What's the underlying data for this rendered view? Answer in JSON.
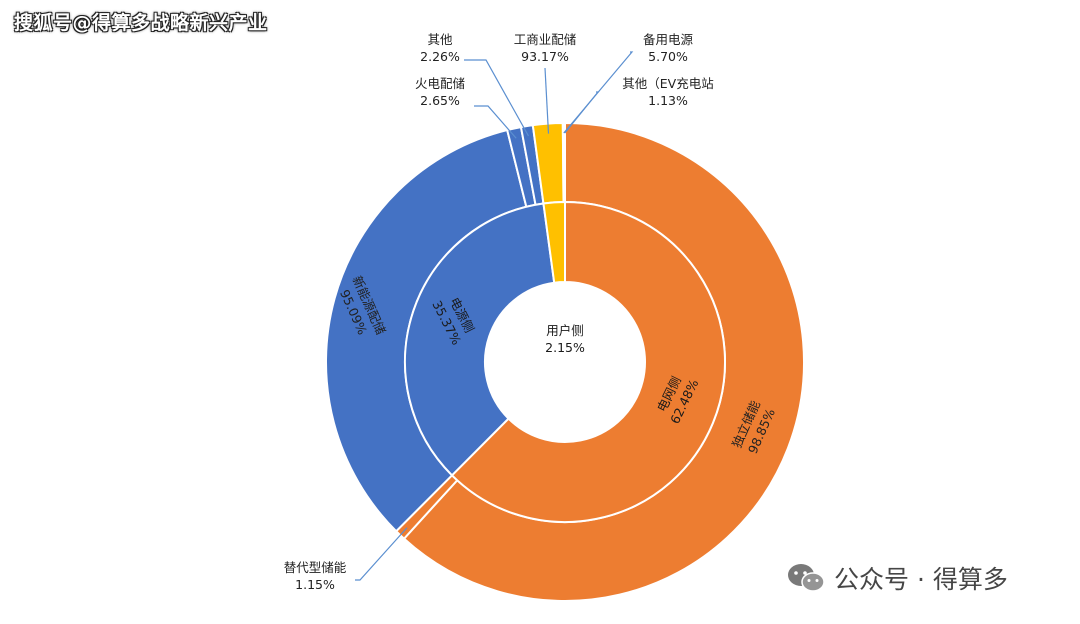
{
  "watermarks": {
    "top": "搜狐号@得算多战略新兴产业",
    "bottom": "公众号 · 得算多",
    "bottom_icon": "wechat-icon"
  },
  "colors": {
    "orange": "#ED7D31",
    "blue": "#4472C4",
    "yellow": "#FFC000",
    "separator": "#ffffff",
    "leader": "#5b8fd0"
  },
  "chart_data": {
    "type": "pie",
    "subtype": "sunburst-donut",
    "inner_ring": [
      {
        "name": "电网侧",
        "value_label": "62.48%",
        "value": 62.48,
        "color": "#ED7D31"
      },
      {
        "name": "电源侧",
        "value_label": "35.37%",
        "value": 35.37,
        "color": "#4472C4"
      },
      {
        "name": "用户侧",
        "value_label": "2.15%",
        "value": 2.15,
        "color": "#FFC000"
      }
    ],
    "outer_ring": [
      {
        "name": "独立储能",
        "value_label": "98.85%",
        "parent": "电网侧",
        "share_of_parent": 98.85,
        "color": "#ED7D31"
      },
      {
        "name": "替代型储能",
        "value_label": "1.15%",
        "parent": "电网侧",
        "share_of_parent": 1.15,
        "color": "#ED7D31"
      },
      {
        "name": "新能源配储",
        "value_label": "95.09%",
        "parent": "电源侧",
        "share_of_parent": 95.09,
        "color": "#4472C4"
      },
      {
        "name": "火电配储",
        "value_label": "2.65%",
        "parent": "电源侧",
        "share_of_parent": 2.65,
        "color": "#4472C4"
      },
      {
        "name": "其他",
        "value_label": "2.26%",
        "parent": "电源侧",
        "share_of_parent": 2.26,
        "color": "#4472C4"
      },
      {
        "name": "工商业配储",
        "value_label": "93.17%",
        "parent": "用户侧",
        "share_of_parent": 93.17,
        "color": "#FFC000"
      },
      {
        "name": "备用电源",
        "value_label": "5.70%",
        "parent": "用户侧",
        "share_of_parent": 5.7,
        "color": "#FFC000"
      },
      {
        "name": "其他（EV充电站",
        "value_label": "1.13%",
        "parent": "用户侧",
        "share_of_parent": 1.13,
        "color": "#FFC000"
      }
    ]
  }
}
